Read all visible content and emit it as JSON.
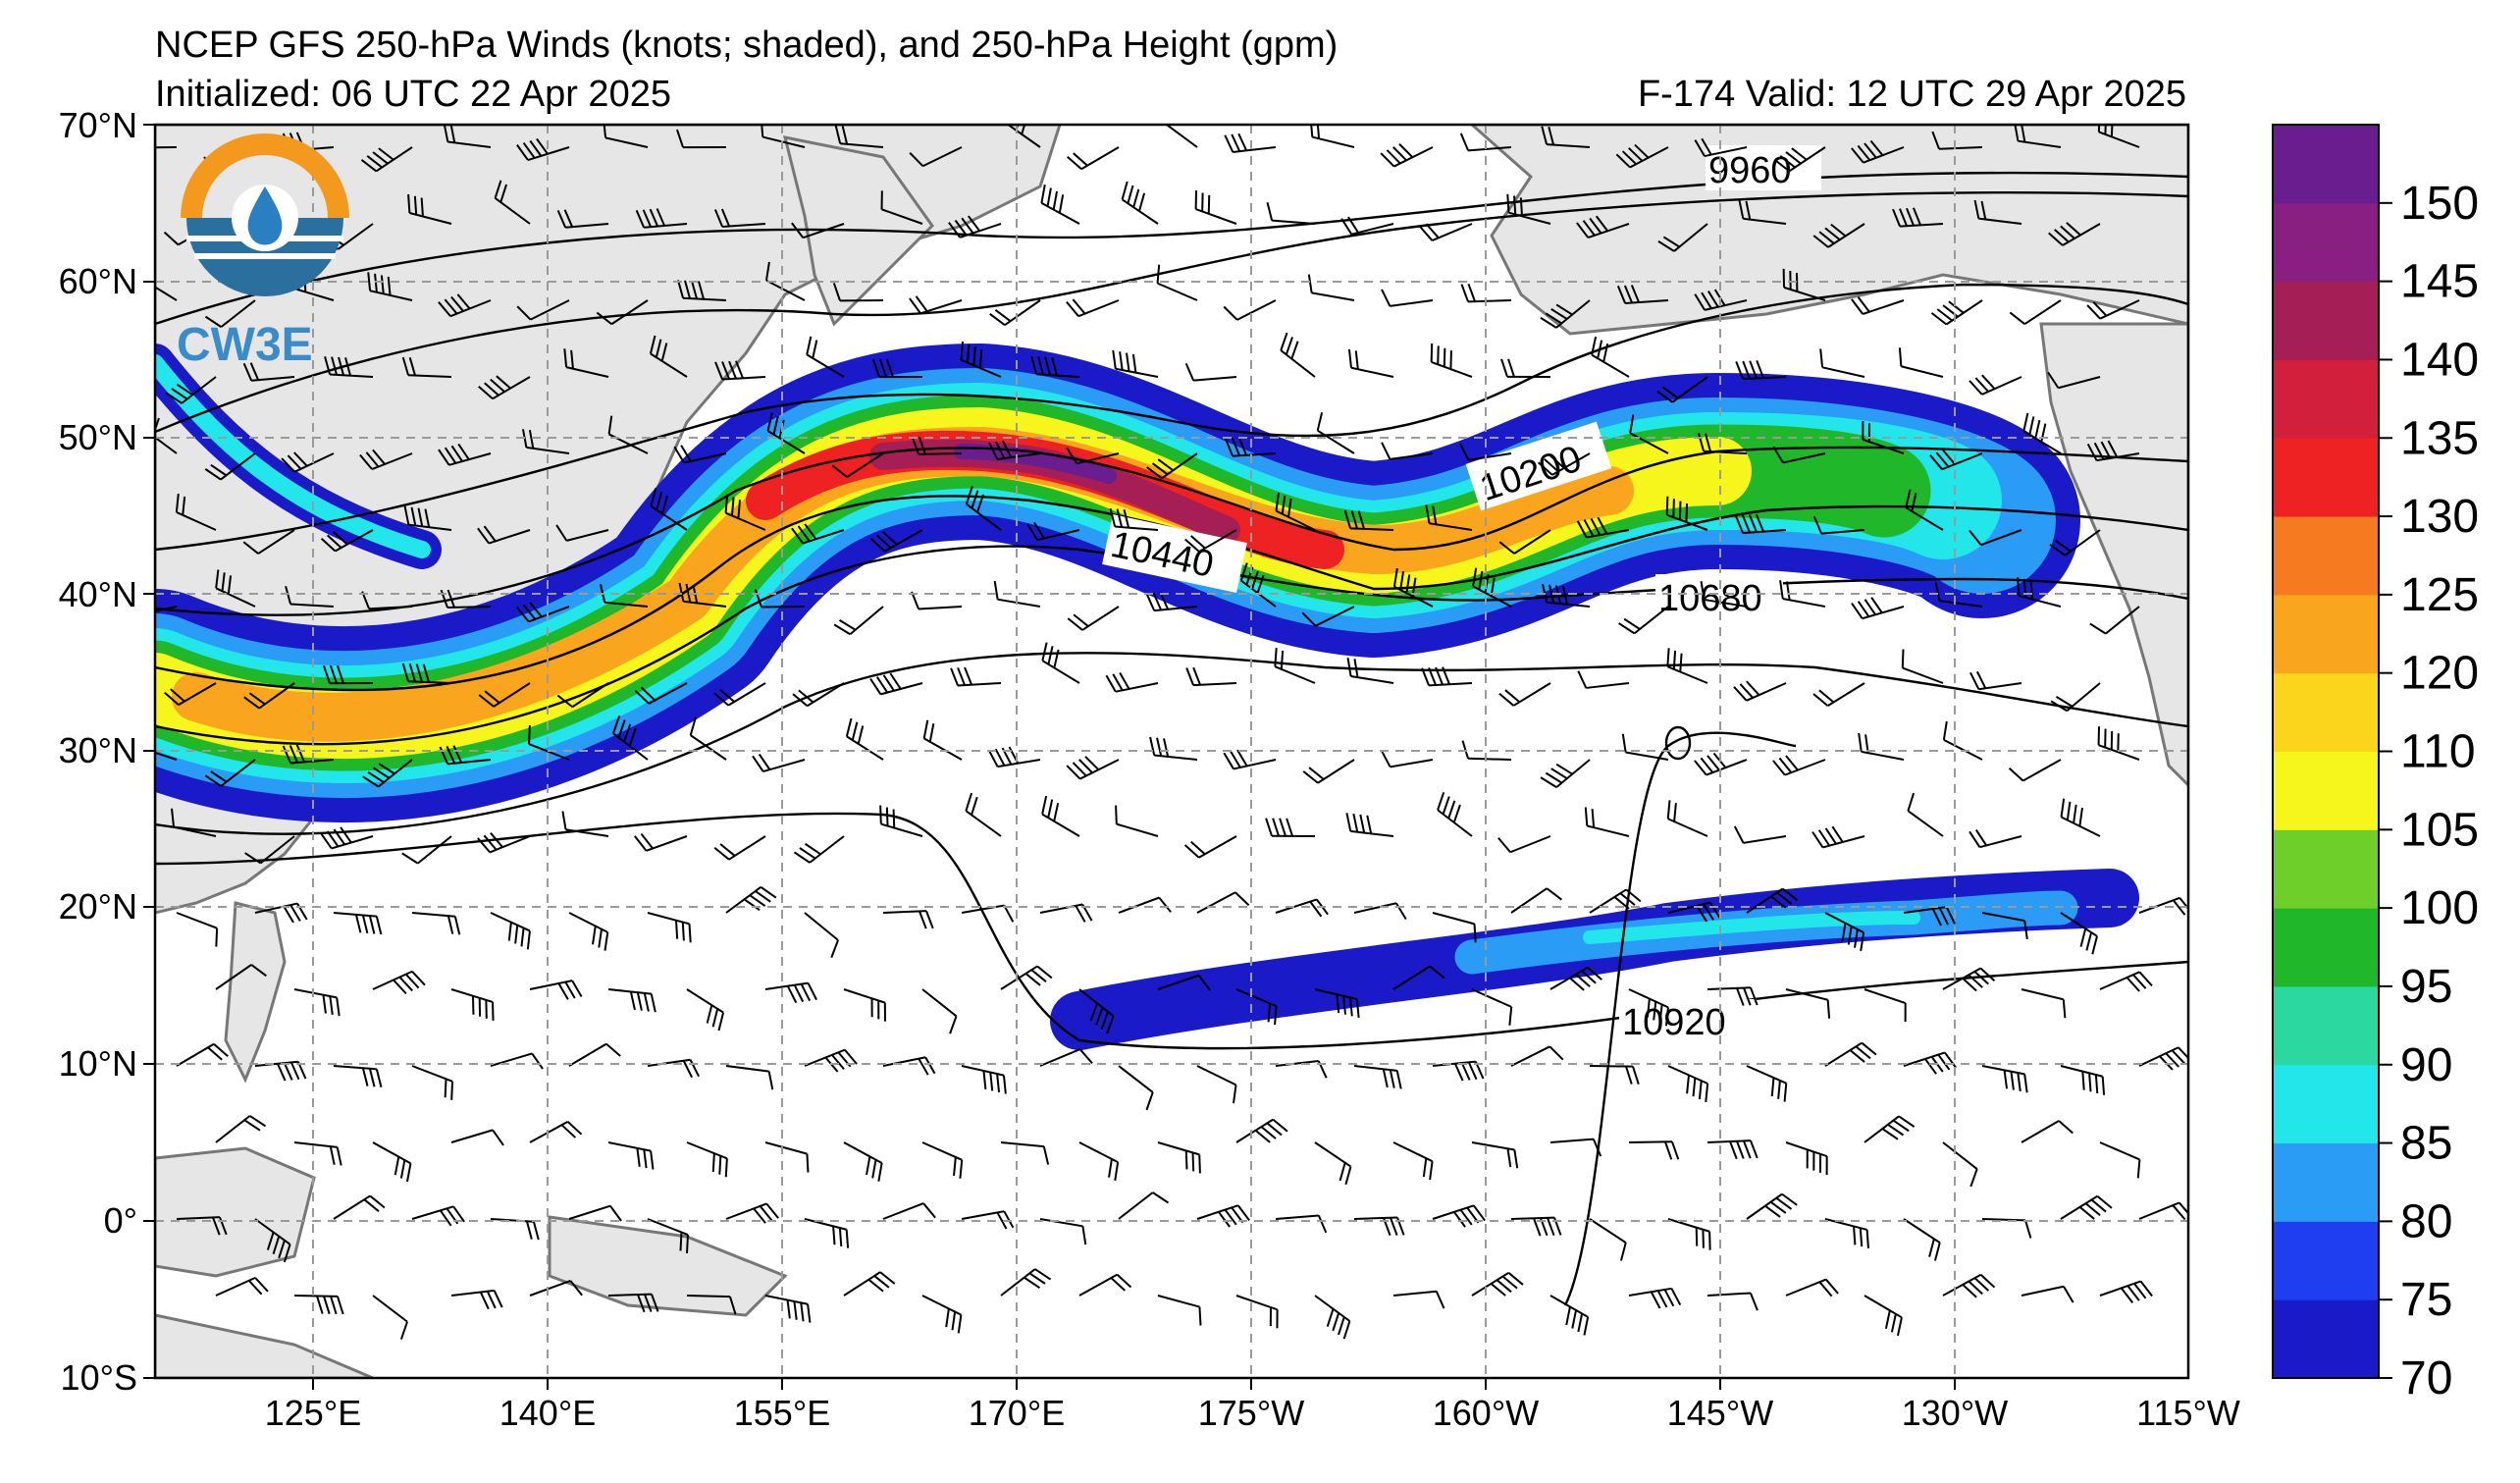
{
  "title": {
    "line1": "NCEP GFS 250-hPa Winds (knots; shaded), and 250-hPa Height (gpm)",
    "line2": "Initialized: 06 UTC 22 Apr 2025",
    "valid": "F-174  Valid: 12 UTC 29 Apr 2025"
  },
  "logo": {
    "text": "CW3E"
  },
  "axes": {
    "lat_labels": [
      "70°N",
      "60°N",
      "50°N",
      "40°N",
      "30°N",
      "20°N",
      "10°N",
      "0°",
      "10°S"
    ],
    "lon_labels": [
      "125°E",
      "140°E",
      "155°E",
      "170°E",
      "175°W",
      "160°W",
      "145°W",
      "130°W",
      "115°W"
    ]
  },
  "contour_labels": [
    "9960",
    "10200",
    "10440",
    "10680",
    "10920"
  ],
  "colorbar": {
    "ticks": [
      "150",
      "145",
      "140",
      "135",
      "130",
      "125",
      "120",
      "110",
      "105",
      "100",
      "95",
      "90",
      "85",
      "80",
      "75",
      "70"
    ],
    "colors": [
      "#1a1ac8",
      "#1f3ef0",
      "#2a9cf5",
      "#22e6ea",
      "#2ad8a0",
      "#20b82a",
      "#6fcf2a",
      "#f6f61c",
      "#fbd41c",
      "#f9a51e",
      "#f57a20",
      "#ee2222",
      "#d21f3c",
      "#a51e56",
      "#8a1f82",
      "#6a1d8e"
    ]
  },
  "colors": {
    "land": "#e6e6e6",
    "coast": "#777777",
    "grid": "#9a9a9a"
  }
}
